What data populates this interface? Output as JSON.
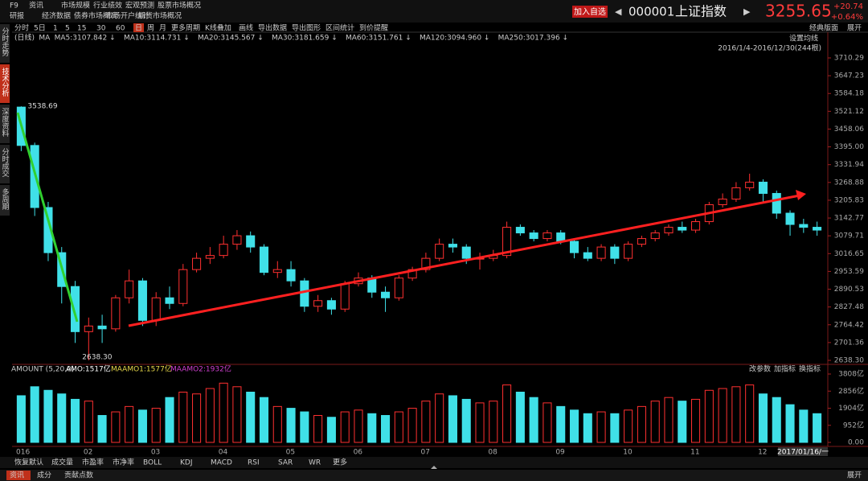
{
  "menu": {
    "rows": [
      [
        "F9",
        "资讯",
        "市场规模",
        "行业绩效",
        "宏观预测",
        "股票市场概况"
      ],
      [
        "研报",
        "经济数据",
        "债券市场概况",
        "市场开户统计",
        "期货市场概况"
      ]
    ]
  },
  "quote": {
    "add": "加入自选",
    "code": "000001",
    "name": "上证指数",
    "price": "3255.65",
    "change": "+20.74",
    "pct": "+0.64%"
  },
  "sidebar": {
    "items": [
      "分时走势",
      "技术分析",
      "深度资料",
      "分时成交",
      "多周期"
    ],
    "active_index": 1
  },
  "toolbar": {
    "items": [
      "分时",
      "5日",
      "1",
      "5",
      "15",
      "30",
      "60",
      "日",
      "周",
      "月",
      "更多周期",
      "K线叠加",
      "画线",
      "导出数据",
      "导出图形",
      "区间统计",
      "到价提醒"
    ],
    "active_index": 7,
    "right": [
      "经典版面",
      "展开"
    ]
  },
  "ma_legend": [
    {
      "label": "(日线)",
      "color": "#e05050"
    },
    {
      "label": "MA",
      "color": "#aaaaaa"
    },
    {
      "label": "MA5:3107.842 ↓",
      "color": "#dddddd"
    },
    {
      "label": "MA10:3114.731 ↓",
      "color": "#e8d84a"
    },
    {
      "label": "MA20:3145.567 ↓",
      "color": "#d040d0"
    },
    {
      "label": "MA30:3181.659 ↓",
      "color": "#40c040"
    },
    {
      "label": "MA60:3151.761 ↓",
      "color": "#bbbbbb"
    },
    {
      "label": "MA120:3094.960 ↓",
      "color": "#40a0d0"
    },
    {
      "label": "MA250:3017.396 ↓",
      "color": "#d8d890"
    }
  ],
  "chart_data": {
    "type": "candlestick",
    "setting_label": "设置均线",
    "range_label": "2016/1/4-2016/12/30(244根)",
    "high_label": "3538.69",
    "low_label": "2638.30",
    "up_color": "#ff3030",
    "down_color": "#40e0e8",
    "ylim": [
      2638.3,
      3710.29
    ],
    "yticks": [
      3710.29,
      3647.23,
      3584.18,
      3521.12,
      3458.06,
      {
        "value": 3395.0,
        "label": "3395.00"
      },
      3331.94,
      3268.88,
      3205.83,
      3142.77,
      3079.71,
      3016.65,
      2953.59,
      2890.53,
      2827.48,
      2764.42,
      2701.36,
      {
        "value": 2638.3,
        "label": "2638.30"
      }
    ],
    "candles": [
      [
        3536,
        3400,
        3538.69,
        3380
      ],
      [
        3400,
        3180,
        3410,
        3150
      ],
      [
        3180,
        3020,
        3200,
        2990
      ],
      [
        3020,
        2900,
        3040,
        2840
      ],
      [
        2900,
        2740,
        2920,
        2700
      ],
      [
        2740,
        2760,
        2790,
        2638.3
      ],
      [
        2760,
        2750,
        2800,
        2700
      ],
      [
        2750,
        2860,
        2870,
        2740
      ],
      [
        2860,
        2920,
        2960,
        2840
      ],
      [
        2920,
        2780,
        2930,
        2760
      ],
      [
        2780,
        2860,
        2880,
        2760
      ],
      [
        2860,
        2840,
        2900,
        2820
      ],
      [
        2840,
        2960,
        2980,
        2830
      ],
      [
        2960,
        3000,
        3020,
        2950
      ],
      [
        3000,
        3010,
        3040,
        2980
      ],
      [
        3010,
        3050,
        3080,
        3000
      ],
      [
        3050,
        3080,
        3100,
        3030
      ],
      [
        3080,
        3040,
        3095,
        3020
      ],
      [
        3040,
        2950,
        3050,
        2940
      ],
      [
        2950,
        2960,
        2990,
        2930
      ],
      [
        2960,
        2920,
        2990,
        2900
      ],
      [
        2920,
        2830,
        2930,
        2810
      ],
      [
        2830,
        2850,
        2870,
        2810
      ],
      [
        2850,
        2820,
        2860,
        2800
      ],
      [
        2820,
        2910,
        2920,
        2810
      ],
      [
        2910,
        2930,
        2950,
        2900
      ],
      [
        2930,
        2880,
        2940,
        2860
      ],
      [
        2880,
        2860,
        2900,
        2810
      ],
      [
        2860,
        2930,
        2940,
        2850
      ],
      [
        2930,
        2960,
        2970,
        2920
      ],
      [
        2960,
        3000,
        3020,
        2950
      ],
      [
        3000,
        3050,
        3070,
        2990
      ],
      [
        3050,
        3040,
        3070,
        3020
      ],
      [
        3040,
        3000,
        3050,
        2980
      ],
      [
        3000,
        3000,
        3020,
        2960
      ],
      [
        3000,
        3010,
        3030,
        2990
      ],
      [
        3010,
        3110,
        3130,
        3000
      ],
      [
        3110,
        3090,
        3120,
        3080
      ],
      [
        3090,
        3070,
        3100,
        3060
      ],
      [
        3070,
        3090,
        3100,
        3060
      ],
      [
        3090,
        3060,
        3100,
        3050
      ],
      [
        3060,
        3020,
        3070,
        3000
      ],
      [
        3020,
        3000,
        3040,
        2990
      ],
      [
        3000,
        3040,
        3050,
        2990
      ],
      [
        3040,
        3000,
        3050,
        2980
      ],
      [
        3000,
        3050,
        3060,
        2990
      ],
      [
        3050,
        3070,
        3080,
        3040
      ],
      [
        3070,
        3090,
        3100,
        3060
      ],
      [
        3090,
        3110,
        3120,
        3080
      ],
      [
        3110,
        3100,
        3130,
        3090
      ],
      [
        3100,
        3130,
        3140,
        3090
      ],
      [
        3130,
        3190,
        3200,
        3120
      ],
      [
        3190,
        3210,
        3230,
        3180
      ],
      [
        3210,
        3250,
        3270,
        3200
      ],
      [
        3250,
        3270,
        3300,
        3240
      ],
      [
        3270,
        3230,
        3280,
        3200
      ],
      [
        3230,
        3160,
        3240,
        3140
      ],
      [
        3160,
        3120,
        3170,
        3080
      ],
      [
        3120,
        3110,
        3140,
        3090
      ],
      [
        3110,
        3100,
        3130,
        3080
      ]
    ],
    "months": [
      "016",
      "02",
      "03",
      "04",
      "05",
      "06",
      "07",
      "08",
      "09",
      "10",
      "11",
      "12"
    ],
    "month_index": [
      0,
      5,
      10,
      15,
      20,
      25,
      30,
      35,
      40,
      45,
      50,
      55
    ],
    "end_date": "2017/01/16/一",
    "volume": {
      "title": "AMOUNT (5,20,0)",
      "amo": "AMO:1517亿",
      "ma1": "MAAMO1:1577亿",
      "ma2": "MAAMO2:1932亿",
      "buttons": [
        "改参数",
        "加指标",
        "换指标"
      ],
      "ylim": [
        0,
        3808
      ],
      "yticks": [
        {
          "value": 3808,
          "label": "3808亿"
        },
        {
          "value": 2856,
          "label": "2856亿"
        },
        {
          "value": 1904,
          "label": "1904亿"
        },
        {
          "value": 952,
          "label": "952亿"
        },
        {
          "value": 0,
          "label": "0.00"
        }
      ],
      "values": [
        2600,
        3100,
        2900,
        2700,
        2400,
        2300,
        1500,
        1700,
        2000,
        1800,
        1900,
        2500,
        2800,
        2700,
        3000,
        3300,
        3100,
        2800,
        2500,
        2000,
        1900,
        1700,
        1500,
        1400,
        1700,
        1800,
        1600,
        1500,
        1700,
        1900,
        2300,
        2700,
        2600,
        2400,
        2200,
        2300,
        3200,
        2800,
        2500,
        2200,
        2000,
        1800,
        1600,
        1700,
        1600,
        1800,
        2000,
        2300,
        2500,
        2300,
        2400,
        2900,
        3000,
        3100,
        3200,
        2700,
        2500,
        2100,
        1800,
        1600
      ]
    }
  },
  "indicators": {
    "items": [
      "恢复默认",
      "成交量",
      "市盈率",
      "市净率",
      "BOLL",
      "KDJ",
      "MACD",
      "RSI",
      "SAR",
      "WR",
      "更多"
    ]
  },
  "bottom": {
    "tabs": [
      "资讯",
      "成分",
      "贡献点数"
    ],
    "active_index": 0,
    "right": "展开"
  }
}
